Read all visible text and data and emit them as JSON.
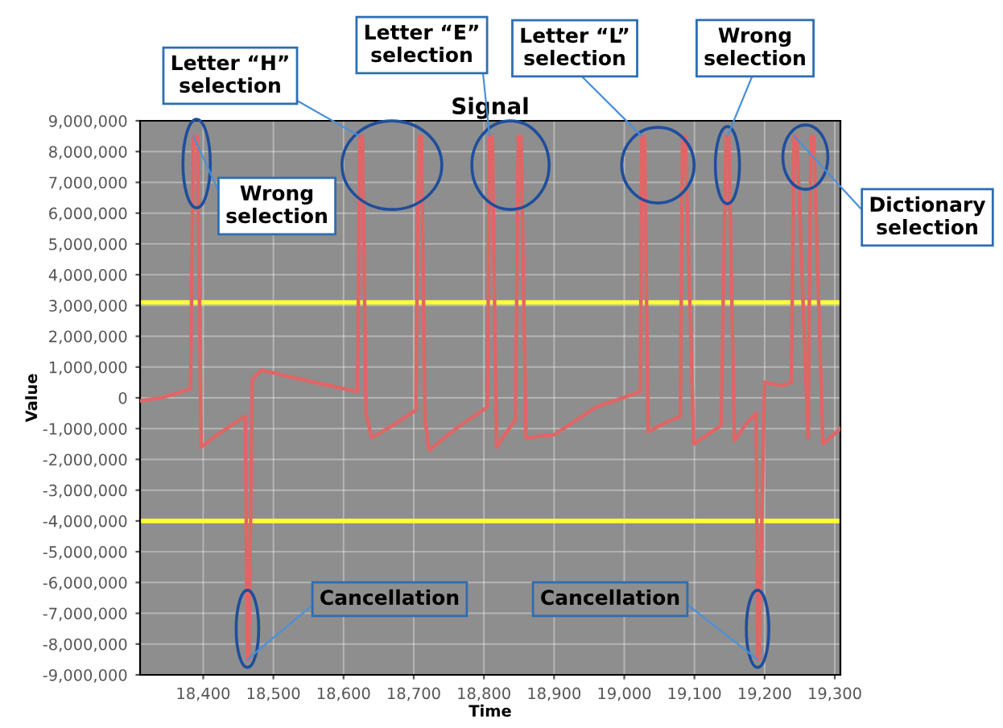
{
  "chart_data": {
    "type": "line",
    "title": "Signal",
    "xlabel": "Time",
    "ylabel": "Value",
    "xlim": [
      18310,
      19308
    ],
    "ylim": [
      -9000000,
      9000000
    ],
    "xticks": [
      {
        "value": 18400,
        "label": "18,400"
      },
      {
        "value": 18500,
        "label": "18,500"
      },
      {
        "value": 18600,
        "label": "18,600"
      },
      {
        "value": 18700,
        "label": "18,700"
      },
      {
        "value": 18800,
        "label": "18,800"
      },
      {
        "value": 18900,
        "label": "18,900"
      },
      {
        "value": 19000,
        "label": "19,000"
      },
      {
        "value": 19100,
        "label": "19,100"
      },
      {
        "value": 19200,
        "label": "19,200"
      },
      {
        "value": 19300,
        "label": "19,300"
      }
    ],
    "yticks": [
      {
        "value": 9000000,
        "label": "9,000,000"
      },
      {
        "value": 8000000,
        "label": "8,000,000"
      },
      {
        "value": 7000000,
        "label": "7,000,000"
      },
      {
        "value": 6000000,
        "label": "6,000,000"
      },
      {
        "value": 5000000,
        "label": "5,000,000"
      },
      {
        "value": 4000000,
        "label": "4,000,000"
      },
      {
        "value": 3000000,
        "label": "3,000,000"
      },
      {
        "value": 2000000,
        "label": "2,000,000"
      },
      {
        "value": 1000000,
        "label": "1,000,000"
      },
      0,
      {
        "value": -1000000,
        "label": "-1,000,000"
      },
      {
        "value": -2000000,
        "label": "-2,000,000"
      },
      {
        "value": -3000000,
        "label": "-3,000,000"
      },
      {
        "value": -4000000,
        "label": "-4,000,000"
      },
      {
        "value": -5000000,
        "label": "-5,000,000"
      },
      {
        "value": -6000000,
        "label": "-6,000,000"
      },
      {
        "value": -7000000,
        "label": "-7,000,000"
      },
      {
        "value": -8000000,
        "label": "-8,000,000"
      },
      {
        "value": -9000000,
        "label": "-9,000,000"
      }
    ],
    "grid": true,
    "legend": false,
    "series": [
      {
        "color": "#e06666",
        "x": [
          18310,
          18340,
          18370,
          18382,
          18386,
          18392,
          18397,
          18420,
          18460,
          18463,
          18465,
          18470,
          18483,
          18520,
          18580,
          18620,
          18623,
          18627,
          18632,
          18640,
          18670,
          18703,
          18707,
          18711,
          18716,
          18722,
          18760,
          18805,
          18808,
          18812,
          18818,
          18845,
          18849,
          18853,
          18860,
          18900,
          18960,
          19023,
          19025,
          19029,
          19034,
          19060,
          19080,
          19083,
          19087,
          19099,
          19138,
          19145,
          19149,
          19157,
          19175,
          19188,
          19190,
          19192,
          19200,
          19225,
          19238,
          19242,
          19246,
          19262,
          19266,
          19270,
          19283,
          19308
        ],
        "values": [
          -100000,
          0,
          200000,
          300000,
          8500000,
          8500000,
          -1600000,
          -1200000,
          -600000,
          -8500000,
          -8500000,
          600000,
          900000,
          700000,
          400000,
          200000,
          8500000,
          8500000,
          -500000,
          -1300000,
          -900000,
          -400000,
          8500000,
          8500000,
          -700000,
          -1700000,
          -1000000,
          -300000,
          8500000,
          8500000,
          -1600000,
          -700000,
          8500000,
          8500000,
          -1300000,
          -1200000,
          -300000,
          200000,
          8500000,
          8500000,
          -1100000,
          -800000,
          -600000,
          8500000,
          8500000,
          -1500000,
          -900000,
          8500000,
          8500000,
          -1400000,
          -800000,
          -500000,
          -8500000,
          -8500000,
          500000,
          400000,
          500000,
          8500000,
          8500000,
          -1300000,
          8500000,
          8500000,
          -1500000,
          -1000000
        ]
      }
    ],
    "ref_lines": [
      {
        "axis": "y",
        "value": 3100000,
        "color": "#ffff33"
      },
      {
        "axis": "y",
        "value": -4000000,
        "color": "#ffff33"
      }
    ],
    "annotations": [
      {
        "text": "Wrong\nselection",
        "x": 18386,
        "y": 8500000
      },
      {
        "text": "Letter “H”\nselection",
        "x": 18623,
        "y": 8500000
      },
      {
        "text": "Letter “E”\nselection",
        "x": 18808,
        "y": 8500000
      },
      {
        "text": "Letter “L”\nselection",
        "x": 19025,
        "y": 8500000
      },
      {
        "text": "Wrong\nselection",
        "x": 19147,
        "y": 8500000
      },
      {
        "text": "Dictionary\nselection",
        "x": 19242,
        "y": 8500000
      },
      {
        "text": "Cancellation",
        "x": 18463,
        "y": -8500000
      },
      {
        "text": "Cancellation",
        "x": 19190,
        "y": -8500000
      }
    ]
  }
}
